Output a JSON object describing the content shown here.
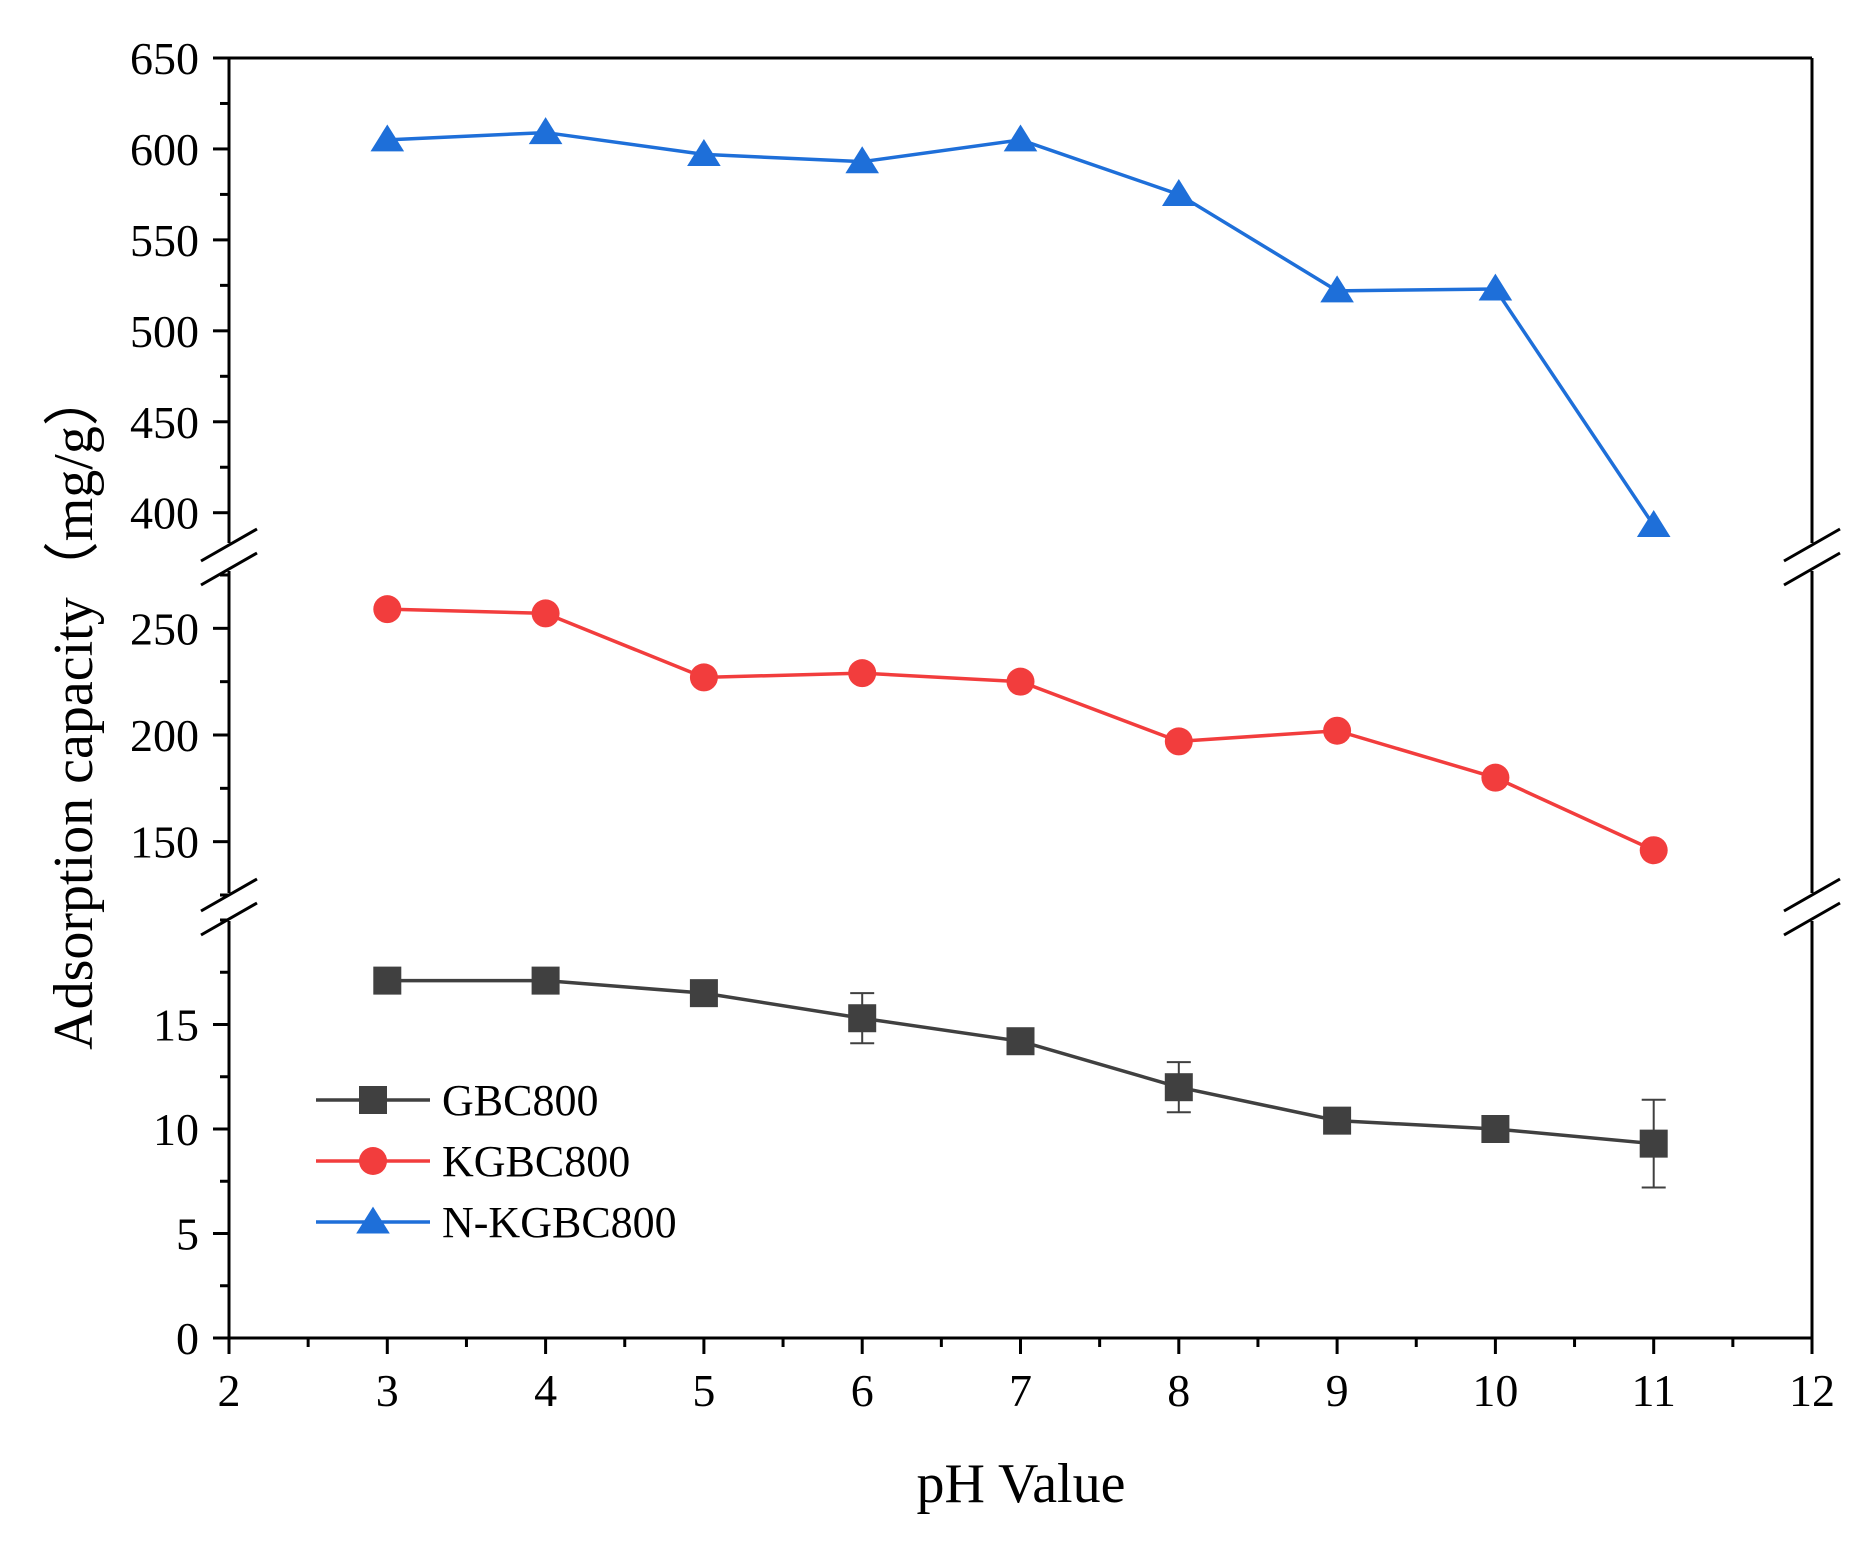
{
  "chart_data": {
    "type": "line",
    "title": "",
    "xlabel": "pH Value",
    "ylabel": "Adsorption capacity（mg/g）",
    "xlim": [
      2,
      12
    ],
    "x_ticks": [
      "2",
      "3",
      "4",
      "5",
      "6",
      "7",
      "8",
      "9",
      "10",
      "11",
      "12"
    ],
    "x": [
      3,
      4,
      5,
      6,
      7,
      8,
      9,
      10,
      11
    ],
    "axis_breaks": true,
    "segments": [
      {
        "name": "bottom",
        "ylim": [
          0,
          20
        ],
        "ticks": [
          "0",
          "5",
          "10",
          "15"
        ]
      },
      {
        "name": "middle",
        "ylim": [
          125,
          275
        ],
        "ticks": [
          "150",
          "200",
          "250"
        ]
      },
      {
        "name": "top",
        "ylim": [
          385,
          650
        ],
        "ticks": [
          "400",
          "450",
          "500",
          "550",
          "600",
          "650"
        ]
      }
    ],
    "legend_position": "lower-left",
    "series": [
      {
        "name": "GBC800",
        "marker": "square",
        "color": "#404040",
        "segment": "bottom",
        "values": [
          17.1,
          17.1,
          16.5,
          15.3,
          14.2,
          12.0,
          10.4,
          10.0,
          9.3
        ],
        "errors": [
          0,
          0,
          0,
          1.2,
          0.6,
          1.2,
          0,
          0,
          2.1
        ]
      },
      {
        "name": "KGBC800",
        "marker": "circle",
        "color": "#f23d3d",
        "segment": "middle",
        "values": [
          259,
          257,
          227,
          229,
          225,
          197,
          202,
          180,
          146
        ],
        "errors": [
          0,
          0,
          0,
          0,
          0,
          0,
          0,
          0,
          0
        ]
      },
      {
        "name": "N-KGBC800",
        "marker": "triangle",
        "color": "#1e6fd9",
        "segment": "top",
        "values": [
          605,
          609,
          597,
          593,
          605,
          575,
          522,
          523,
          393
        ],
        "errors": [
          0,
          0,
          0,
          0,
          0,
          0,
          0,
          0,
          0
        ]
      }
    ]
  }
}
